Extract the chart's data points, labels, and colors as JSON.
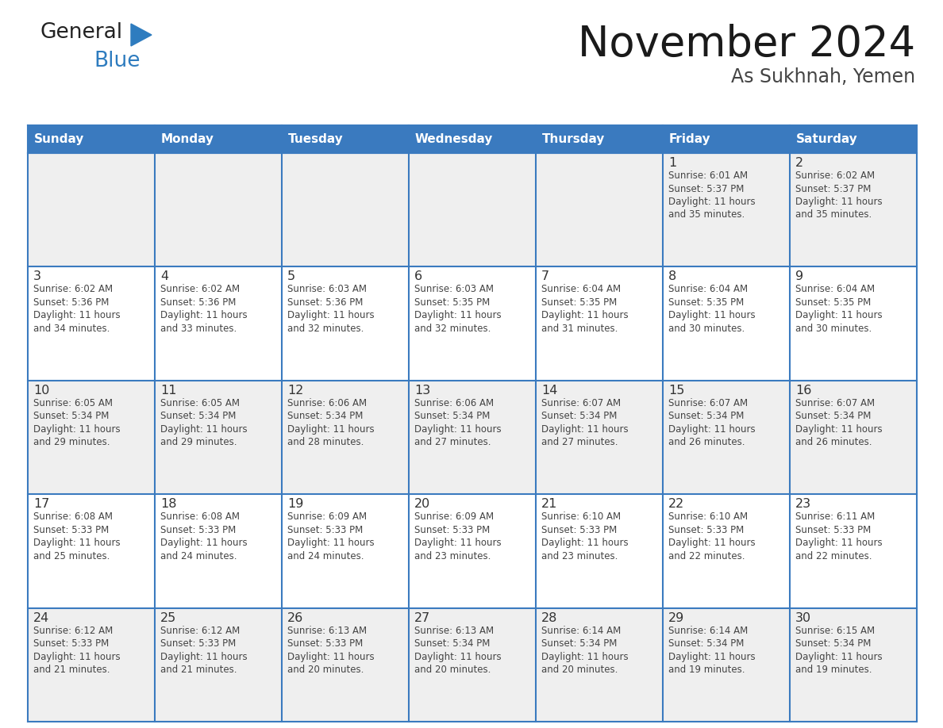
{
  "title": "November 2024",
  "subtitle": "As Sukhnah, Yemen",
  "days_of_week": [
    "Sunday",
    "Monday",
    "Tuesday",
    "Wednesday",
    "Thursday",
    "Friday",
    "Saturday"
  ],
  "header_bg": "#3a7abf",
  "header_text": "#ffffff",
  "cell_bg_white": "#ffffff",
  "cell_bg_gray": "#efefef",
  "border_color": "#3a7abf",
  "day_num_color": "#333333",
  "cell_text_color": "#444444",
  "title_color": "#1a1a1a",
  "subtitle_color": "#444444",
  "logo_general_color": "#222222",
  "logo_blue_color": "#2e7cbf",
  "weeks": [
    [
      {
        "day": null,
        "info": ""
      },
      {
        "day": null,
        "info": ""
      },
      {
        "day": null,
        "info": ""
      },
      {
        "day": null,
        "info": ""
      },
      {
        "day": null,
        "info": ""
      },
      {
        "day": 1,
        "info": "Sunrise: 6:01 AM\nSunset: 5:37 PM\nDaylight: 11 hours\nand 35 minutes."
      },
      {
        "day": 2,
        "info": "Sunrise: 6:02 AM\nSunset: 5:37 PM\nDaylight: 11 hours\nand 35 minutes."
      }
    ],
    [
      {
        "day": 3,
        "info": "Sunrise: 6:02 AM\nSunset: 5:36 PM\nDaylight: 11 hours\nand 34 minutes."
      },
      {
        "day": 4,
        "info": "Sunrise: 6:02 AM\nSunset: 5:36 PM\nDaylight: 11 hours\nand 33 minutes."
      },
      {
        "day": 5,
        "info": "Sunrise: 6:03 AM\nSunset: 5:36 PM\nDaylight: 11 hours\nand 32 minutes."
      },
      {
        "day": 6,
        "info": "Sunrise: 6:03 AM\nSunset: 5:35 PM\nDaylight: 11 hours\nand 32 minutes."
      },
      {
        "day": 7,
        "info": "Sunrise: 6:04 AM\nSunset: 5:35 PM\nDaylight: 11 hours\nand 31 minutes."
      },
      {
        "day": 8,
        "info": "Sunrise: 6:04 AM\nSunset: 5:35 PM\nDaylight: 11 hours\nand 30 minutes."
      },
      {
        "day": 9,
        "info": "Sunrise: 6:04 AM\nSunset: 5:35 PM\nDaylight: 11 hours\nand 30 minutes."
      }
    ],
    [
      {
        "day": 10,
        "info": "Sunrise: 6:05 AM\nSunset: 5:34 PM\nDaylight: 11 hours\nand 29 minutes."
      },
      {
        "day": 11,
        "info": "Sunrise: 6:05 AM\nSunset: 5:34 PM\nDaylight: 11 hours\nand 29 minutes."
      },
      {
        "day": 12,
        "info": "Sunrise: 6:06 AM\nSunset: 5:34 PM\nDaylight: 11 hours\nand 28 minutes."
      },
      {
        "day": 13,
        "info": "Sunrise: 6:06 AM\nSunset: 5:34 PM\nDaylight: 11 hours\nand 27 minutes."
      },
      {
        "day": 14,
        "info": "Sunrise: 6:07 AM\nSunset: 5:34 PM\nDaylight: 11 hours\nand 27 minutes."
      },
      {
        "day": 15,
        "info": "Sunrise: 6:07 AM\nSunset: 5:34 PM\nDaylight: 11 hours\nand 26 minutes."
      },
      {
        "day": 16,
        "info": "Sunrise: 6:07 AM\nSunset: 5:34 PM\nDaylight: 11 hours\nand 26 minutes."
      }
    ],
    [
      {
        "day": 17,
        "info": "Sunrise: 6:08 AM\nSunset: 5:33 PM\nDaylight: 11 hours\nand 25 minutes."
      },
      {
        "day": 18,
        "info": "Sunrise: 6:08 AM\nSunset: 5:33 PM\nDaylight: 11 hours\nand 24 minutes."
      },
      {
        "day": 19,
        "info": "Sunrise: 6:09 AM\nSunset: 5:33 PM\nDaylight: 11 hours\nand 24 minutes."
      },
      {
        "day": 20,
        "info": "Sunrise: 6:09 AM\nSunset: 5:33 PM\nDaylight: 11 hours\nand 23 minutes."
      },
      {
        "day": 21,
        "info": "Sunrise: 6:10 AM\nSunset: 5:33 PM\nDaylight: 11 hours\nand 23 minutes."
      },
      {
        "day": 22,
        "info": "Sunrise: 6:10 AM\nSunset: 5:33 PM\nDaylight: 11 hours\nand 22 minutes."
      },
      {
        "day": 23,
        "info": "Sunrise: 6:11 AM\nSunset: 5:33 PM\nDaylight: 11 hours\nand 22 minutes."
      }
    ],
    [
      {
        "day": 24,
        "info": "Sunrise: 6:12 AM\nSunset: 5:33 PM\nDaylight: 11 hours\nand 21 minutes."
      },
      {
        "day": 25,
        "info": "Sunrise: 6:12 AM\nSunset: 5:33 PM\nDaylight: 11 hours\nand 21 minutes."
      },
      {
        "day": 26,
        "info": "Sunrise: 6:13 AM\nSunset: 5:33 PM\nDaylight: 11 hours\nand 20 minutes."
      },
      {
        "day": 27,
        "info": "Sunrise: 6:13 AM\nSunset: 5:34 PM\nDaylight: 11 hours\nand 20 minutes."
      },
      {
        "day": 28,
        "info": "Sunrise: 6:14 AM\nSunset: 5:34 PM\nDaylight: 11 hours\nand 20 minutes."
      },
      {
        "day": 29,
        "info": "Sunrise: 6:14 AM\nSunset: 5:34 PM\nDaylight: 11 hours\nand 19 minutes."
      },
      {
        "day": 30,
        "info": "Sunrise: 6:15 AM\nSunset: 5:34 PM\nDaylight: 11 hours\nand 19 minutes."
      }
    ]
  ]
}
